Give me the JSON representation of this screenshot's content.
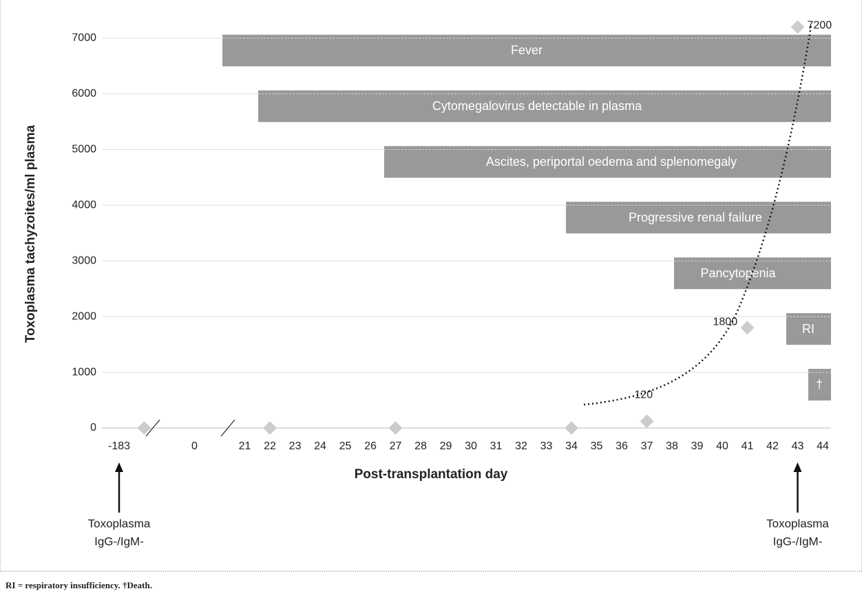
{
  "chart_data": {
    "type": "scatter",
    "x_label": "Post-transplantation day",
    "y_label": "Toxoplasma tachyzoites/ml plasma",
    "categories": [
      "-183",
      null,
      null,
      "0",
      null,
      "21",
      "22",
      "23",
      "24",
      "25",
      "26",
      "27",
      "28",
      "29",
      "30",
      "31",
      "32",
      "33",
      "34",
      "35",
      "36",
      "37",
      "38",
      "39",
      "40",
      "41",
      "42",
      "43",
      "44"
    ],
    "values": [
      null,
      0,
      null,
      null,
      null,
      null,
      0,
      null,
      null,
      null,
      null,
      0,
      null,
      null,
      null,
      null,
      null,
      null,
      0,
      null,
      null,
      120,
      null,
      null,
      null,
      1800,
      null,
      7200,
      null
    ],
    "value_labels": [
      null,
      null,
      null,
      null,
      null,
      null,
      null,
      null,
      null,
      null,
      null,
      null,
      null,
      null,
      null,
      null,
      null,
      null,
      null,
      null,
      null,
      "120",
      null,
      null,
      null,
      "1800",
      null,
      "7200",
      null
    ],
    "color": "#cccccc",
    "ylim": [
      0,
      7500
    ],
    "yticks": [
      0,
      1000,
      2000,
      3000,
      4000,
      5000,
      6000,
      7000
    ],
    "grid": true,
    "events": [
      "Fever",
      "Cytomegalovirus detectable in plasma",
      "Ascites, periportal oedema and splenomegaly",
      "Progressive renal failure",
      "Pancytopenia",
      "RI",
      "†"
    ],
    "event_color": "#999999",
    "annotations": [
      {
        "at": "-183",
        "lines": [
          "Toxoplasma",
          "IgG-/IgM-"
        ]
      },
      {
        "at": "43",
        "lines": [
          "Toxoplasma",
          "IgG-/IgM-"
        ]
      }
    ],
    "footnote": "RI = respiratory insufficiency. †Death."
  }
}
